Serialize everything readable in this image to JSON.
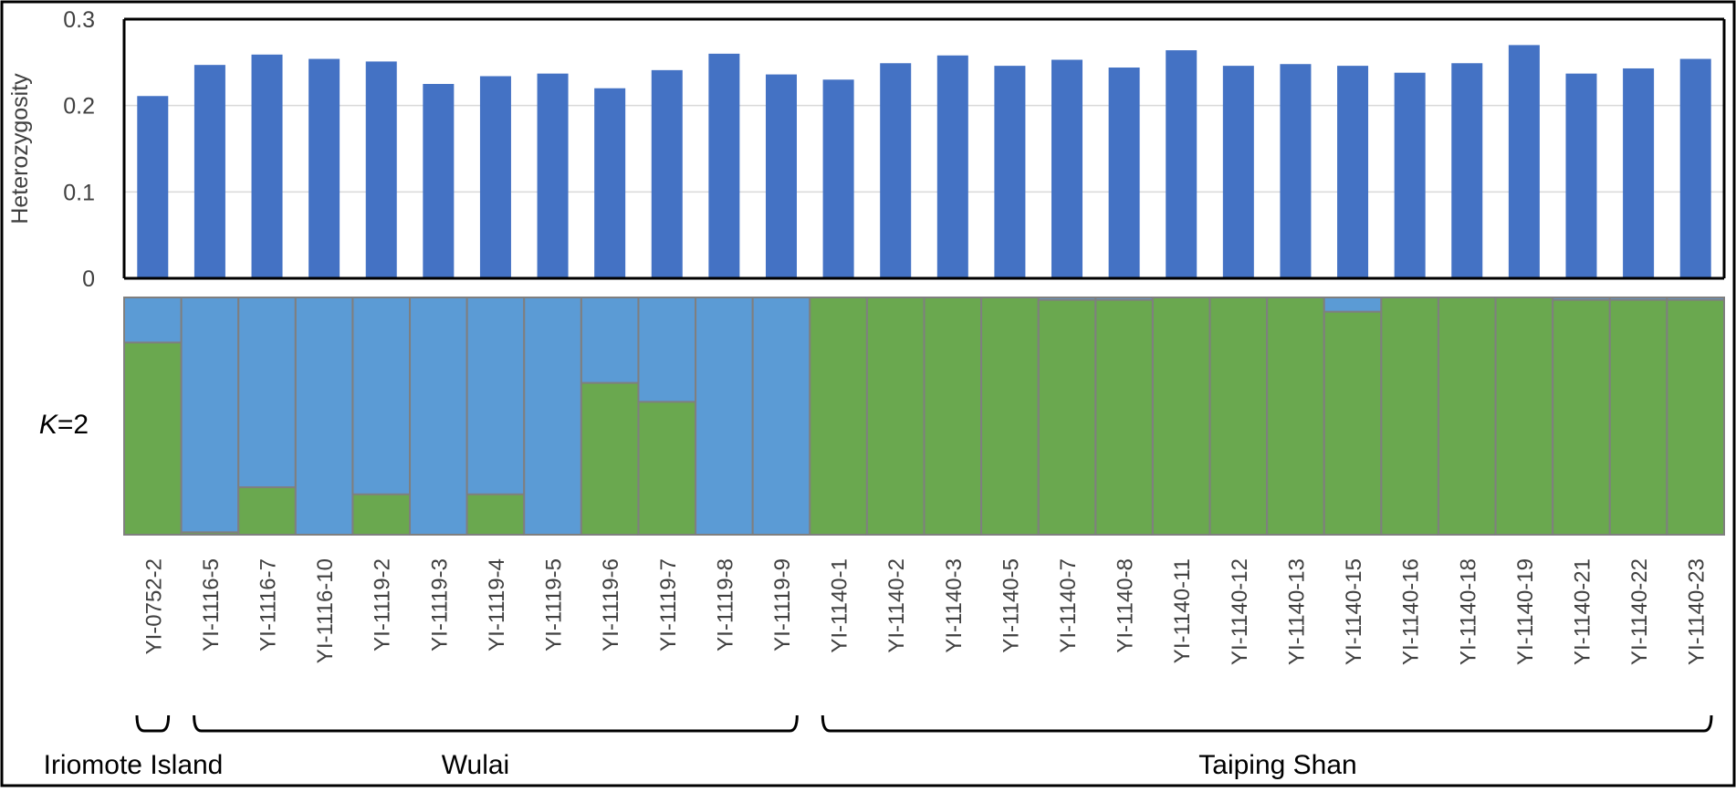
{
  "chart_data": [
    {
      "type": "bar",
      "ylabel": "Heterozygosity",
      "ylim": [
        0,
        0.3
      ],
      "yticks": [
        "0",
        "0.1",
        "0.2",
        "0.3"
      ],
      "grid": true,
      "categories": [
        "YI-0752-2",
        "YI-1116-5",
        "YI-1116-7",
        "YI-1116-10",
        "YI-1119-2",
        "YI-1119-3",
        "YI-1119-4",
        "YI-1119-5",
        "YI-1119-6",
        "YI-1119-7",
        "YI-1119-8",
        "YI-1119-9",
        "YI-1140-1",
        "YI-1140-2",
        "YI-1140-3",
        "YI-1140-5",
        "YI-1140-7",
        "YI-1140-8",
        "YI-1140-11",
        "YI-1140-12",
        "YI-1140-13",
        "YI-1140-15",
        "YI-1140-16",
        "YI-1140-18",
        "YI-1140-19",
        "YI-1140-21",
        "YI-1140-22",
        "YI-1140-23"
      ],
      "values": [
        0.211,
        0.247,
        0.259,
        0.254,
        0.251,
        0.225,
        0.234,
        0.237,
        0.22,
        0.241,
        0.26,
        0.236,
        0.23,
        0.249,
        0.258,
        0.246,
        0.253,
        0.244,
        0.264,
        0.246,
        0.248,
        0.246,
        0.238,
        0.249,
        0.27,
        0.237,
        0.243,
        0.254
      ],
      "colors": {
        "bar": "#4472C4",
        "grid": "#d9d9d9",
        "axis": "#000000"
      }
    },
    {
      "type": "stacked-bar",
      "label_prefix": "K",
      "label_suffix": "=2",
      "series": [
        {
          "name": "",
          "color": "#5B9BD5",
          "values": [
            0.19,
            0.99,
            0.8,
            1.0,
            0.83,
            1.0,
            0.83,
            1.0,
            0.36,
            0.44,
            1.0,
            1.0,
            0.0,
            0.0,
            0.0,
            0.0,
            0.01,
            0.01,
            0.0,
            0.0,
            0.0,
            0.06,
            0.0,
            0.0,
            0.0,
            0.01,
            0.01,
            0.01
          ]
        },
        {
          "name": "",
          "color": "#6AA84F",
          "values": [
            0.81,
            0.01,
            0.2,
            0.0,
            0.17,
            0.0,
            0.17,
            0.0,
            0.64,
            0.56,
            0.0,
            0.0,
            1.0,
            1.0,
            1.0,
            1.0,
            0.99,
            0.99,
            1.0,
            1.0,
            1.0,
            0.94,
            1.0,
            1.0,
            1.0,
            0.99,
            0.99,
            0.99
          ]
        }
      ],
      "groups": [
        {
          "label": "Iriomote Island",
          "from": 0,
          "to": 0
        },
        {
          "label": "Wulai",
          "from": 1,
          "to": 11
        },
        {
          "label": "Taiping Shan",
          "from": 12,
          "to": 27
        }
      ]
    }
  ]
}
